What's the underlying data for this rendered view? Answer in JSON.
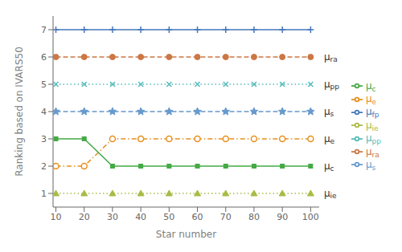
{
  "chart_data": {
    "type": "line",
    "xlabel": "Star number",
    "ylabel": "Ranking based on IVARS50",
    "x": [
      10,
      20,
      30,
      40,
      50,
      60,
      70,
      80,
      90,
      100
    ],
    "xlim": [
      9,
      103
    ],
    "xticks": [
      10,
      20,
      30,
      40,
      50,
      60,
      70,
      80,
      90,
      100
    ],
    "ylim": [
      0.5,
      7.5
    ],
    "yticks": [
      1,
      2,
      3,
      4,
      5,
      6,
      7
    ],
    "grid": false,
    "legend": "right",
    "series": [
      {
        "name": "μra",
        "color": "#cc7744",
        "line_style": "dashed",
        "marker": "circle",
        "values": [
          6,
          6,
          6,
          6,
          6,
          6,
          6,
          6,
          6,
          6
        ]
      },
      {
        "name": "μfp",
        "color": "#4477bb",
        "line_style": "solid",
        "marker": "plus",
        "values": [
          7,
          7,
          7,
          7,
          7,
          7,
          7,
          7,
          7,
          7
        ]
      },
      {
        "name": "μpp",
        "color": "#55bbbb",
        "line_style": "dotted",
        "marker": "x",
        "values": [
          5,
          5,
          5,
          5,
          5,
          5,
          5,
          5,
          5,
          5
        ]
      },
      {
        "name": "μe",
        "color": "#e8901e",
        "line_style": "dashdot",
        "marker": "open_circle",
        "values": [
          2,
          2,
          3,
          3,
          3,
          3,
          3,
          3,
          3,
          3
        ]
      },
      {
        "name": "μs",
        "color": "#6699cc",
        "line_style": "dashed",
        "marker": "star",
        "values": [
          4,
          4,
          4,
          4,
          4,
          4,
          4,
          4,
          4,
          4
        ]
      },
      {
        "name": "μc",
        "color": "#44aa44",
        "line_style": "solid",
        "marker": "square",
        "values": [
          3,
          3,
          2,
          2,
          2,
          2,
          2,
          2,
          2,
          2
        ]
      },
      {
        "name": "μie",
        "color": "#aabb44",
        "line_style": "dotted",
        "marker": "triangle",
        "values": [
          1,
          1,
          1,
          1,
          1,
          1,
          1,
          1,
          1,
          1
        ]
      }
    ],
    "annotations": [
      {
        "text": "μra",
        "y": 6
      },
      {
        "text": "μpp",
        "y": 5
      },
      {
        "text": "μs",
        "y": 4
      },
      {
        "text": "μe",
        "y": 3
      },
      {
        "text": "μc",
        "y": 2
      },
      {
        "text": "μie",
        "y": 1
      }
    ]
  }
}
